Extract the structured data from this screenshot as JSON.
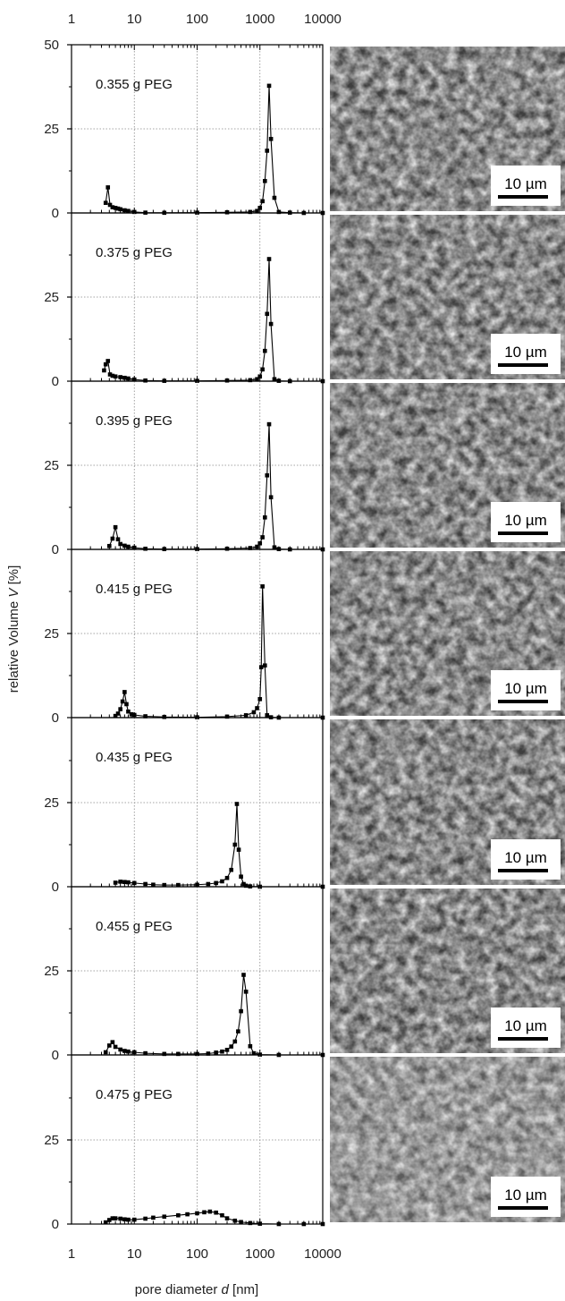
{
  "chart_data": {
    "type": "line",
    "x_scale": "log",
    "xlim": [
      1,
      10000
    ],
    "ylim": [
      0,
      50
    ],
    "x_ticks": [
      "1",
      "10",
      "100",
      "1000",
      "10000"
    ],
    "y_ticks_top": [
      "0",
      "25",
      "50"
    ],
    "y_ticks": [
      "0",
      "25"
    ],
    "xlabel_prefix": "pore diameter ",
    "xlabel_var": "d",
    "xlabel_suffix": " [nm]",
    "ylabel_prefix": "relative Volume ",
    "ylabel_var": "V",
    "ylabel_suffix": " [%]",
    "grid": true,
    "marker": "square",
    "color": "#000000",
    "scale_bar_label": "10 µm",
    "series": [
      {
        "name": "0.355 g PEG",
        "x": [
          3.5,
          3.8,
          4.1,
          4.5,
          5,
          5.5,
          6,
          7,
          8,
          10,
          15,
          30,
          100,
          300,
          700,
          900,
          1000,
          1100,
          1200,
          1300,
          1400,
          1500,
          1700,
          2000,
          3000,
          5000,
          10000
        ],
        "y": [
          3,
          7.6,
          2.4,
          1.7,
          1.5,
          1.3,
          1.1,
          0.8,
          0.6,
          0.3,
          0.1,
          0.05,
          0.1,
          0.2,
          0.3,
          0.6,
          1.5,
          3.5,
          9.5,
          18.5,
          37.8,
          22,
          4.5,
          0.3,
          0.1,
          0,
          0
        ]
      },
      {
        "name": "0.375 g PEG",
        "x": [
          3.3,
          3.5,
          3.8,
          4.1,
          4.5,
          5,
          6,
          7,
          8,
          10,
          15,
          30,
          100,
          300,
          700,
          900,
          1000,
          1100,
          1200,
          1300,
          1400,
          1500,
          1700,
          2000,
          3000,
          10000
        ],
        "y": [
          3.2,
          5,
          6,
          2,
          1.6,
          1.4,
          1.2,
          1.0,
          0.8,
          0.5,
          0.2,
          0.1,
          0.1,
          0.2,
          0.3,
          0.6,
          1.4,
          3.5,
          9,
          20,
          36.3,
          17,
          0.6,
          0.1,
          0,
          0
        ]
      },
      {
        "name": "0.395 g PEG",
        "x": [
          4,
          4.5,
          5,
          5.5,
          6,
          7,
          8,
          10,
          15,
          30,
          100,
          300,
          700,
          900,
          1000,
          1100,
          1200,
          1300,
          1400,
          1500,
          1700,
          2000,
          3000,
          10000
        ],
        "y": [
          1,
          3.2,
          6.6,
          3,
          1.6,
          1.1,
          0.8,
          0.5,
          0.2,
          0.1,
          0.1,
          0.2,
          0.4,
          0.8,
          1.8,
          3.6,
          9.5,
          22,
          37.2,
          15.5,
          0.6,
          0.1,
          0,
          0
        ]
      },
      {
        "name": "0.415 g PEG",
        "x": [
          5,
          5.5,
          6,
          6.5,
          7,
          7.5,
          8,
          9,
          10,
          15,
          30,
          100,
          300,
          600,
          800,
          900,
          1000,
          1050,
          1100,
          1200,
          1300,
          1500,
          2000,
          10000
        ],
        "y": [
          0.5,
          1.2,
          2.5,
          4.8,
          7.6,
          4,
          1.8,
          1.0,
          0.8,
          0.4,
          0.2,
          0.1,
          0.3,
          0.7,
          1.6,
          2.8,
          5.5,
          15,
          39,
          15.5,
          0.7,
          0.1,
          0,
          0
        ]
      },
      {
        "name": "0.435 g PEG",
        "x": [
          5,
          6,
          7,
          8,
          10,
          15,
          20,
          30,
          50,
          100,
          150,
          200,
          250,
          300,
          350,
          400,
          430,
          460,
          500,
          550,
          600,
          700,
          1000,
          10000
        ],
        "y": [
          1.2,
          1.5,
          1.4,
          1.3,
          1.1,
          0.8,
          0.6,
          0.5,
          0.5,
          0.6,
          0.8,
          1.1,
          1.6,
          2.6,
          5,
          12.5,
          24.6,
          11,
          3,
          0.8,
          0.3,
          0.1,
          0,
          0
        ]
      },
      {
        "name": "0.455 g PEG",
        "x": [
          3.5,
          4,
          4.5,
          5,
          6,
          7,
          8,
          10,
          15,
          30,
          50,
          100,
          150,
          200,
          250,
          300,
          350,
          400,
          450,
          500,
          550,
          600,
          700,
          800,
          1000,
          2000,
          10000
        ],
        "y": [
          0.8,
          2.8,
          3.8,
          2.4,
          1.6,
          1.2,
          1,
          0.8,
          0.5,
          0.3,
          0.3,
          0.3,
          0.4,
          0.7,
          1,
          1.5,
          2.5,
          4,
          7,
          13,
          23.8,
          18.8,
          2.6,
          0.5,
          0.1,
          0,
          0
        ]
      },
      {
        "name": "0.475 g PEG",
        "x": [
          3.5,
          4,
          4.5,
          5,
          6,
          7,
          8,
          10,
          15,
          20,
          30,
          50,
          70,
          100,
          130,
          160,
          200,
          250,
          300,
          400,
          500,
          700,
          1000,
          2000,
          5000,
          10000
        ],
        "y": [
          0.5,
          1.2,
          1.7,
          1.7,
          1.6,
          1.4,
          1.3,
          1.3,
          1.6,
          1.9,
          2.2,
          2.6,
          2.9,
          3.2,
          3.5,
          3.7,
          3.4,
          2.6,
          1.7,
          1.0,
          0.6,
          0.3,
          0.1,
          0,
          0,
          0
        ]
      }
    ]
  }
}
